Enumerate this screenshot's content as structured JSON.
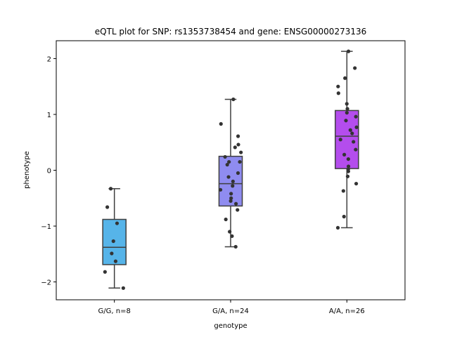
{
  "chart_data": {
    "type": "box",
    "title": "eQTL plot for SNP: rs1353738454 and gene: ENSG00000273136",
    "xlabel": "genotype",
    "ylabel": "phenotype",
    "ylim": [
      -2.32,
      2.32
    ],
    "yticks": [
      -2,
      -1,
      0,
      1,
      2
    ],
    "yticklabels": [
      "−2",
      "−1",
      "0",
      "1",
      "2"
    ],
    "grid": false,
    "categories": [
      "G/G, n=8",
      "G/A, n=24",
      "A/A, n=26"
    ],
    "colors": [
      "#56b4e9",
      "#8f8cf0",
      "#b44ded"
    ],
    "boxes": [
      {
        "whisker_low": -2.11,
        "q1": -1.69,
        "median": -1.38,
        "q3": -0.88,
        "whisker_high": -0.33
      },
      {
        "whisker_low": -1.37,
        "q1": -0.64,
        "median": -0.24,
        "q3": 0.25,
        "whisker_high": 1.27
      },
      {
        "whisker_low": -1.03,
        "q1": 0.03,
        "median": 0.61,
        "q3": 1.07,
        "whisker_high": 2.13
      }
    ],
    "points": [
      [
        -2.11,
        -1.82,
        -1.63,
        -1.49,
        -1.27,
        -0.95,
        -0.66,
        -0.33
      ],
      [
        -1.37,
        -1.18,
        -1.1,
        -0.88,
        -0.71,
        -0.6,
        -0.55,
        -0.5,
        -0.42,
        -0.35,
        -0.28,
        -0.2,
        -0.12,
        -0.05,
        0.1,
        0.15,
        0.24,
        0.32,
        0.41,
        0.46,
        0.61,
        0.83,
        1.27,
        0.15
      ],
      [
        -1.03,
        -0.83,
        -0.37,
        -0.24,
        -0.11,
        -0.02,
        0.02,
        0.07,
        0.2,
        0.28,
        0.37,
        0.51,
        0.55,
        0.66,
        0.72,
        0.77,
        0.89,
        0.96,
        1.03,
        1.1,
        1.19,
        1.38,
        1.5,
        1.65,
        1.83,
        2.13
      ]
    ]
  }
}
